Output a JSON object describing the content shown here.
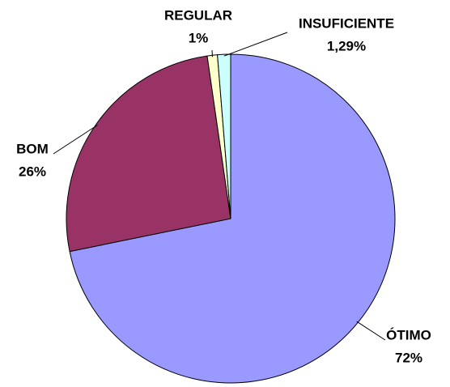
{
  "chart_data": {
    "type": "pie",
    "categories": [
      "ÓTIMO",
      "BOM",
      "REGULAR",
      "INSUFICIENTE"
    ],
    "values": [
      72,
      26,
      1,
      1.29
    ],
    "value_labels": [
      "72%",
      "26%",
      "1%",
      "1,29%"
    ],
    "colors": [
      "#9999ff",
      "#993366",
      "#ffffcc",
      "#ccffff"
    ]
  }
}
